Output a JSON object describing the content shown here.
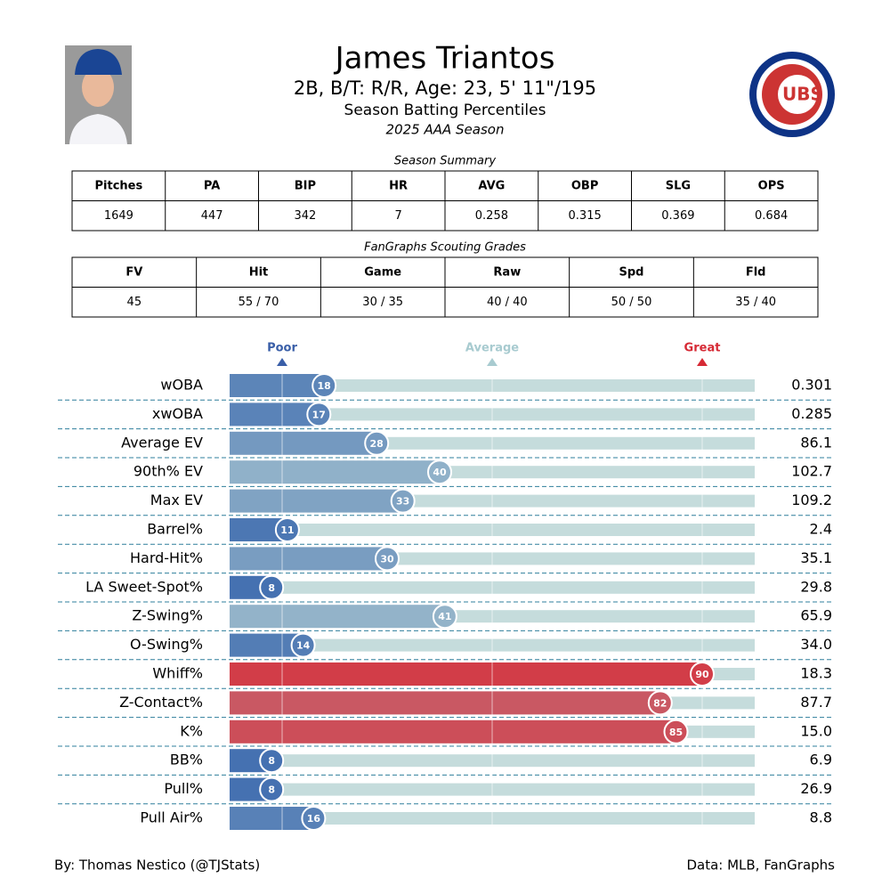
{
  "header": {
    "name": "James Triantos",
    "bio": "2B, B/T: R/R, Age: 23, 5' 11\"/195",
    "subtitle": "Season Batting Percentiles",
    "season": "2025 AAA Season",
    "logo_text": "UBS"
  },
  "summary": {
    "title": "Season Summary",
    "columns": [
      "Pitches",
      "PA",
      "BIP",
      "HR",
      "AVG",
      "OBP",
      "SLG",
      "OPS"
    ],
    "row": [
      "1649",
      "447",
      "342",
      "7",
      "0.258",
      "0.315",
      "0.369",
      "0.684"
    ]
  },
  "grades": {
    "title": "FanGraphs Scouting Grades",
    "columns": [
      "FV",
      "Hit",
      "Game",
      "Raw",
      "Spd",
      "Fld"
    ],
    "row": [
      "45",
      "55 / 70",
      "30 / 35",
      "40 / 40",
      "50 / 50",
      "35 / 40"
    ]
  },
  "chart_data": {
    "type": "percentile-bar",
    "categories": [
      "wOBA",
      "xwOBA",
      "Average EV",
      "90th% EV",
      "Max EV",
      "Barrel%",
      "Hard-Hit%",
      "LA Sweet-Spot%",
      "Z-Swing%",
      "O-Swing%",
      "Whiff%",
      "Z-Contact%",
      "K%",
      "BB%",
      "Pull%",
      "Pull Air%"
    ],
    "values": [
      18,
      17,
      28,
      40,
      33,
      11,
      30,
      8,
      41,
      14,
      90,
      82,
      85,
      8,
      8,
      16
    ],
    "stats": [
      "0.301",
      "0.285",
      "86.1",
      "102.7",
      "109.2",
      "2.4",
      "35.1",
      "29.8",
      "65.9",
      "34.0",
      "18.3",
      "87.7",
      "15.0",
      "6.9",
      "26.9",
      "8.8"
    ],
    "xlim": [
      0,
      100
    ],
    "xticks": [
      {
        "value": 10,
        "label": "Poor"
      },
      {
        "value": 50,
        "label": "Average"
      },
      {
        "value": 90,
        "label": "Great"
      }
    ],
    "tick_colors": [
      "#3a5fa8",
      "#a8cbd0",
      "#d62a35"
    ],
    "colormap": [
      "#3261ab",
      "#a8c5d0",
      "#dc1b26"
    ],
    "track_color": "#c5dcdc",
    "separator_color": "#2f7f9c"
  },
  "footer": {
    "left": "By: Thomas Nestico (@TJStats)",
    "right": "Data: MLB, FanGraphs"
  }
}
